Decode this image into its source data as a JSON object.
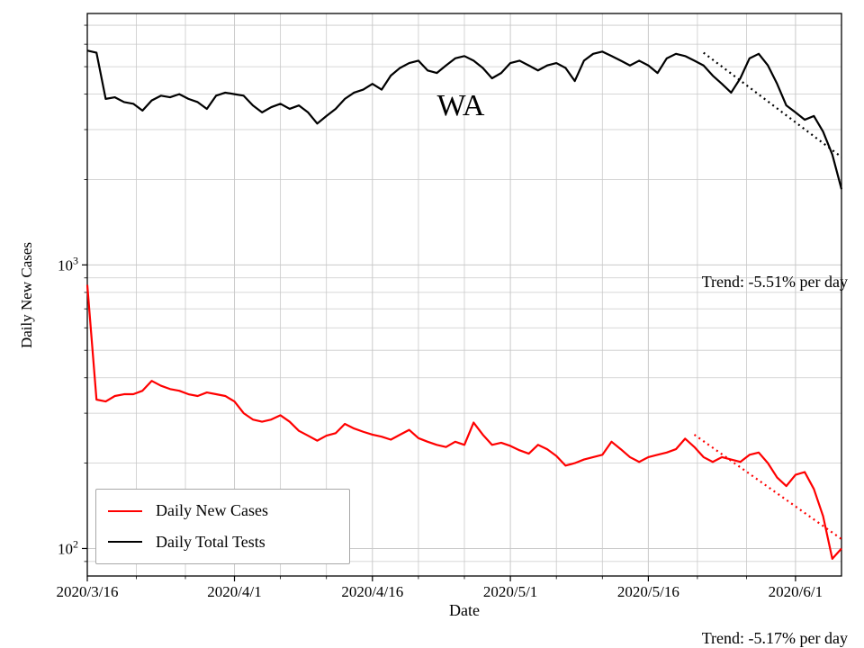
{
  "figure": {
    "background": "#ffffff"
  },
  "chart_data": {
    "type": "line",
    "title": "",
    "annotation": "WA",
    "xlabel": "Date",
    "ylabel": "Daily New Cases",
    "yscale": "log",
    "ylim": [
      80,
      7700
    ],
    "grid": true,
    "grid_color": "#c9c9c9",
    "legend_position": "lower left",
    "dates": [
      "2020-03-16",
      "2020-03-17",
      "2020-03-18",
      "2020-03-19",
      "2020-03-20",
      "2020-03-21",
      "2020-03-22",
      "2020-03-23",
      "2020-03-24",
      "2020-03-25",
      "2020-03-26",
      "2020-03-27",
      "2020-03-28",
      "2020-03-29",
      "2020-03-30",
      "2020-03-31",
      "2020-04-01",
      "2020-04-02",
      "2020-04-03",
      "2020-04-04",
      "2020-04-05",
      "2020-04-06",
      "2020-04-07",
      "2020-04-08",
      "2020-04-09",
      "2020-04-10",
      "2020-04-11",
      "2020-04-12",
      "2020-04-13",
      "2020-04-14",
      "2020-04-15",
      "2020-04-16",
      "2020-04-17",
      "2020-04-18",
      "2020-04-19",
      "2020-04-20",
      "2020-04-21",
      "2020-04-22",
      "2020-04-23",
      "2020-04-24",
      "2020-04-25",
      "2020-04-26",
      "2020-04-27",
      "2020-04-28",
      "2020-04-29",
      "2020-04-30",
      "2020-05-01",
      "2020-05-02",
      "2020-05-03",
      "2020-05-04",
      "2020-05-05",
      "2020-05-06",
      "2020-05-07",
      "2020-05-08",
      "2020-05-09",
      "2020-05-10",
      "2020-05-11",
      "2020-05-12",
      "2020-05-13",
      "2020-05-14",
      "2020-05-15",
      "2020-05-16",
      "2020-05-17",
      "2020-05-18",
      "2020-05-19",
      "2020-05-20",
      "2020-05-21",
      "2020-05-22",
      "2020-05-23",
      "2020-05-24",
      "2020-05-25",
      "2020-05-26",
      "2020-05-27",
      "2020-05-28",
      "2020-05-29",
      "2020-05-30",
      "2020-05-31",
      "2020-06-01",
      "2020-06-02",
      "2020-06-03",
      "2020-06-04",
      "2020-06-05",
      "2020-06-06"
    ],
    "series": [
      {
        "name": "Daily New Cases",
        "color": "#ff0000",
        "values": [
          850,
          335,
          330,
          345,
          350,
          350,
          360,
          390,
          375,
          365,
          360,
          350,
          345,
          355,
          350,
          345,
          330,
          300,
          285,
          280,
          285,
          295,
          280,
          260,
          250,
          240,
          250,
          255,
          275,
          265,
          258,
          252,
          248,
          242,
          252,
          262,
          245,
          238,
          232,
          228,
          238,
          232,
          278,
          252,
          232,
          236,
          230,
          222,
          216,
          232,
          224,
          212,
          196,
          200,
          206,
          210,
          214,
          238,
          224,
          210,
          202,
          210,
          214,
          218,
          224,
          244,
          228,
          210,
          202,
          210,
          206,
          202,
          214,
          218,
          200,
          178,
          166,
          182,
          186,
          162,
          130,
          92,
          100
        ]
      },
      {
        "name": "Daily Total Tests",
        "color": "#000000",
        "values": [
          5700,
          5600,
          3850,
          3900,
          3750,
          3700,
          3500,
          3800,
          3950,
          3900,
          4000,
          3850,
          3750,
          3550,
          3950,
          4050,
          4000,
          3950,
          3650,
          3450,
          3600,
          3700,
          3550,
          3650,
          3450,
          3150,
          3350,
          3550,
          3850,
          4050,
          4150,
          4350,
          4150,
          4650,
          4950,
          5150,
          5250,
          4850,
          4750,
          5050,
          5350,
          5450,
          5250,
          4950,
          4550,
          4750,
          5150,
          5250,
          5050,
          4850,
          5050,
          5150,
          4950,
          4450,
          5250,
          5550,
          5650,
          5450,
          5250,
          5050,
          5250,
          5050,
          4750,
          5350,
          5550,
          5450,
          5250,
          5050,
          4650,
          4350,
          4050,
          4550,
          5350,
          5550,
          5050,
          4350,
          3650,
          3450,
          3250,
          3350,
          2950,
          2450,
          1850
        ]
      }
    ],
    "x_ticks": [
      {
        "date": "2020-03-16",
        "label": "2020/3/16"
      },
      {
        "date": "2020-04-01",
        "label": "2020/4/1"
      },
      {
        "date": "2020-04-16",
        "label": "2020/4/16"
      },
      {
        "date": "2020-05-01",
        "label": "2020/5/1"
      },
      {
        "date": "2020-05-16",
        "label": "2020/5/16"
      },
      {
        "date": "2020-06-01",
        "label": "2020/6/1"
      }
    ],
    "y_ticks": [
      {
        "value": 100,
        "base": "10",
        "exp": "2"
      },
      {
        "value": 1000,
        "base": "10",
        "exp": "3"
      }
    ],
    "trends": [
      {
        "name": "tests-trend",
        "label": "Trend: -5.51% per day",
        "color": "#000000",
        "start_date": "2020-05-22",
        "start_value": 5600,
        "end_date": "2020-06-06",
        "end_value": 2400
      },
      {
        "name": "cases-trend",
        "label": "Trend: -5.17% per day",
        "color": "#ff0000",
        "start_date": "2020-05-21",
        "start_value": 252,
        "end_date": "2020-06-06",
        "end_value": 108
      }
    ]
  }
}
